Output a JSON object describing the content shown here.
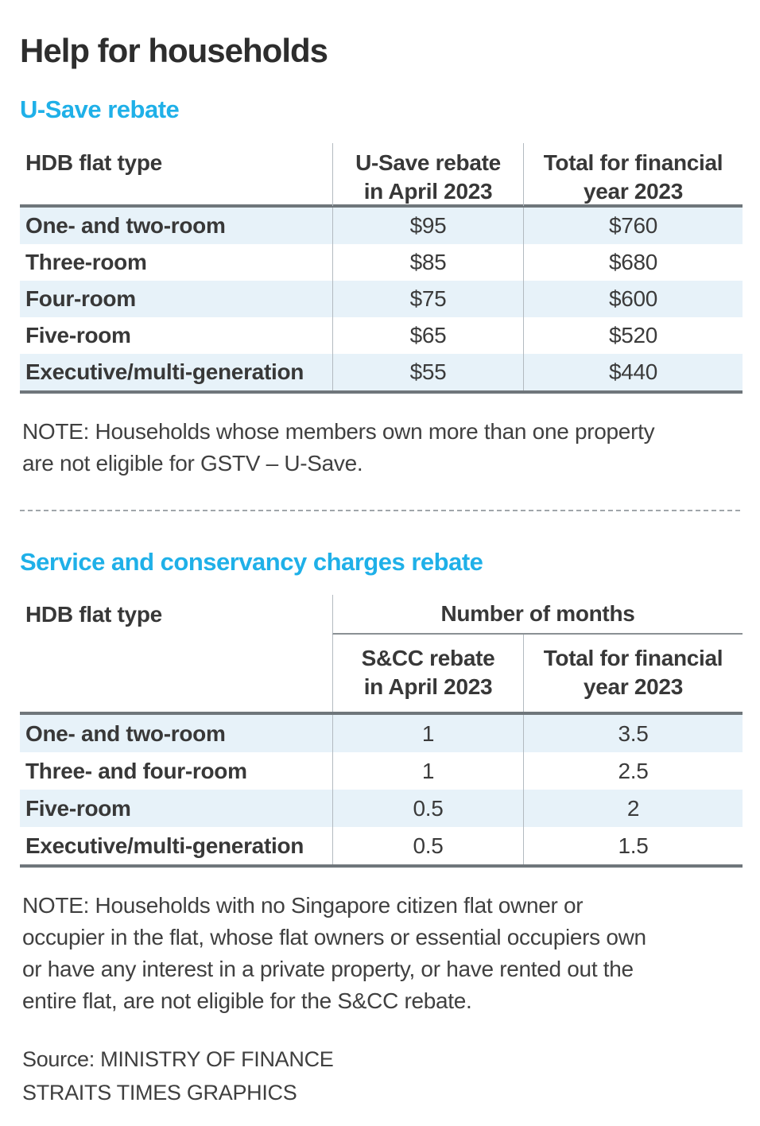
{
  "colors": {
    "accent": "#1fb0e8",
    "row_highlight": "#e7f2f9",
    "rule_heavy": "#6f767b",
    "rule_light": "#b3bac0"
  },
  "title": "Help for households",
  "usave": {
    "heading": "U-Save rebate",
    "columns": {
      "flat_type": "HDB flat type",
      "april_line1": "U-Save rebate",
      "april_line2": "in April 2023",
      "total_line1": "Total for financial",
      "total_line2": "year 2023"
    },
    "rows": [
      {
        "type": "One- and two-room",
        "april": "$95",
        "total": "$760"
      },
      {
        "type": "Three-room",
        "april": "$85",
        "total": "$680"
      },
      {
        "type": "Four-room",
        "april": "$75",
        "total": "$600"
      },
      {
        "type": "Five-room",
        "april": "$65",
        "total": "$520"
      },
      {
        "type": "Executive/multi-generation",
        "april": "$55",
        "total": "$440"
      }
    ],
    "note_lines": [
      "NOTE: Households whose members own more than one property",
      "are not eligible for GSTV – U-Save."
    ]
  },
  "scc": {
    "heading": "Service and conservancy charges rebate",
    "columns": {
      "flat_type": "HDB flat type",
      "group": "Number of months",
      "april_line1": "S&CC rebate",
      "april_line2": "in April 2023",
      "total_line1": "Total for financial",
      "total_line2": "year 2023"
    },
    "rows": [
      {
        "type": "One- and two-room",
        "april": "1",
        "total": "3.5"
      },
      {
        "type": "Three- and four-room",
        "april": "1",
        "total": "2.5"
      },
      {
        "type": "Five-room",
        "april": "0.5",
        "total": "2"
      },
      {
        "type": "Executive/multi-generation",
        "april": "0.5",
        "total": "1.5"
      }
    ],
    "note_lines": [
      "NOTE: Households with no Singapore citizen flat owner or",
      "occupier in the flat, whose flat owners or essential occupiers own",
      "or have any interest in a private property, or have rented out the",
      "entire flat, are not eligible for the S&CC rebate."
    ]
  },
  "source": {
    "line1": "Source: MINISTRY OF FINANCE",
    "line2": "STRAITS TIMES GRAPHICS"
  },
  "chart_data": [
    {
      "type": "table",
      "title": "U-Save rebate",
      "columns": [
        "HDB flat type",
        "U-Save rebate in April 2023",
        "Total for financial year 2023"
      ],
      "rows": [
        [
          "One- and two-room",
          "$95",
          "$760"
        ],
        [
          "Three-room",
          "$85",
          "$680"
        ],
        [
          "Four-room",
          "$75",
          "$600"
        ],
        [
          "Five-room",
          "$65",
          "$520"
        ],
        [
          "Executive/multi-generation",
          "$55",
          "$440"
        ]
      ],
      "note": "NOTE: Households whose members own more than one property are not eligible for GSTV – U-Save."
    },
    {
      "type": "table",
      "title": "Service and conservancy charges rebate",
      "group_header": "Number of months",
      "columns": [
        "HDB flat type",
        "S&CC rebate in April 2023",
        "Total for financial year 2023"
      ],
      "rows": [
        [
          "One- and two-room",
          1,
          3.5
        ],
        [
          "Three- and four-room",
          1,
          2.5
        ],
        [
          "Five-room",
          0.5,
          2
        ],
        [
          "Executive/multi-generation",
          0.5,
          1.5
        ]
      ],
      "note": "NOTE: Households with no Singapore citizen flat owner or occupier in the flat, whose flat owners or essential occupiers own or have any interest in a private property, or have rented out the entire flat, are not eligible for the S&CC rebate."
    }
  ]
}
